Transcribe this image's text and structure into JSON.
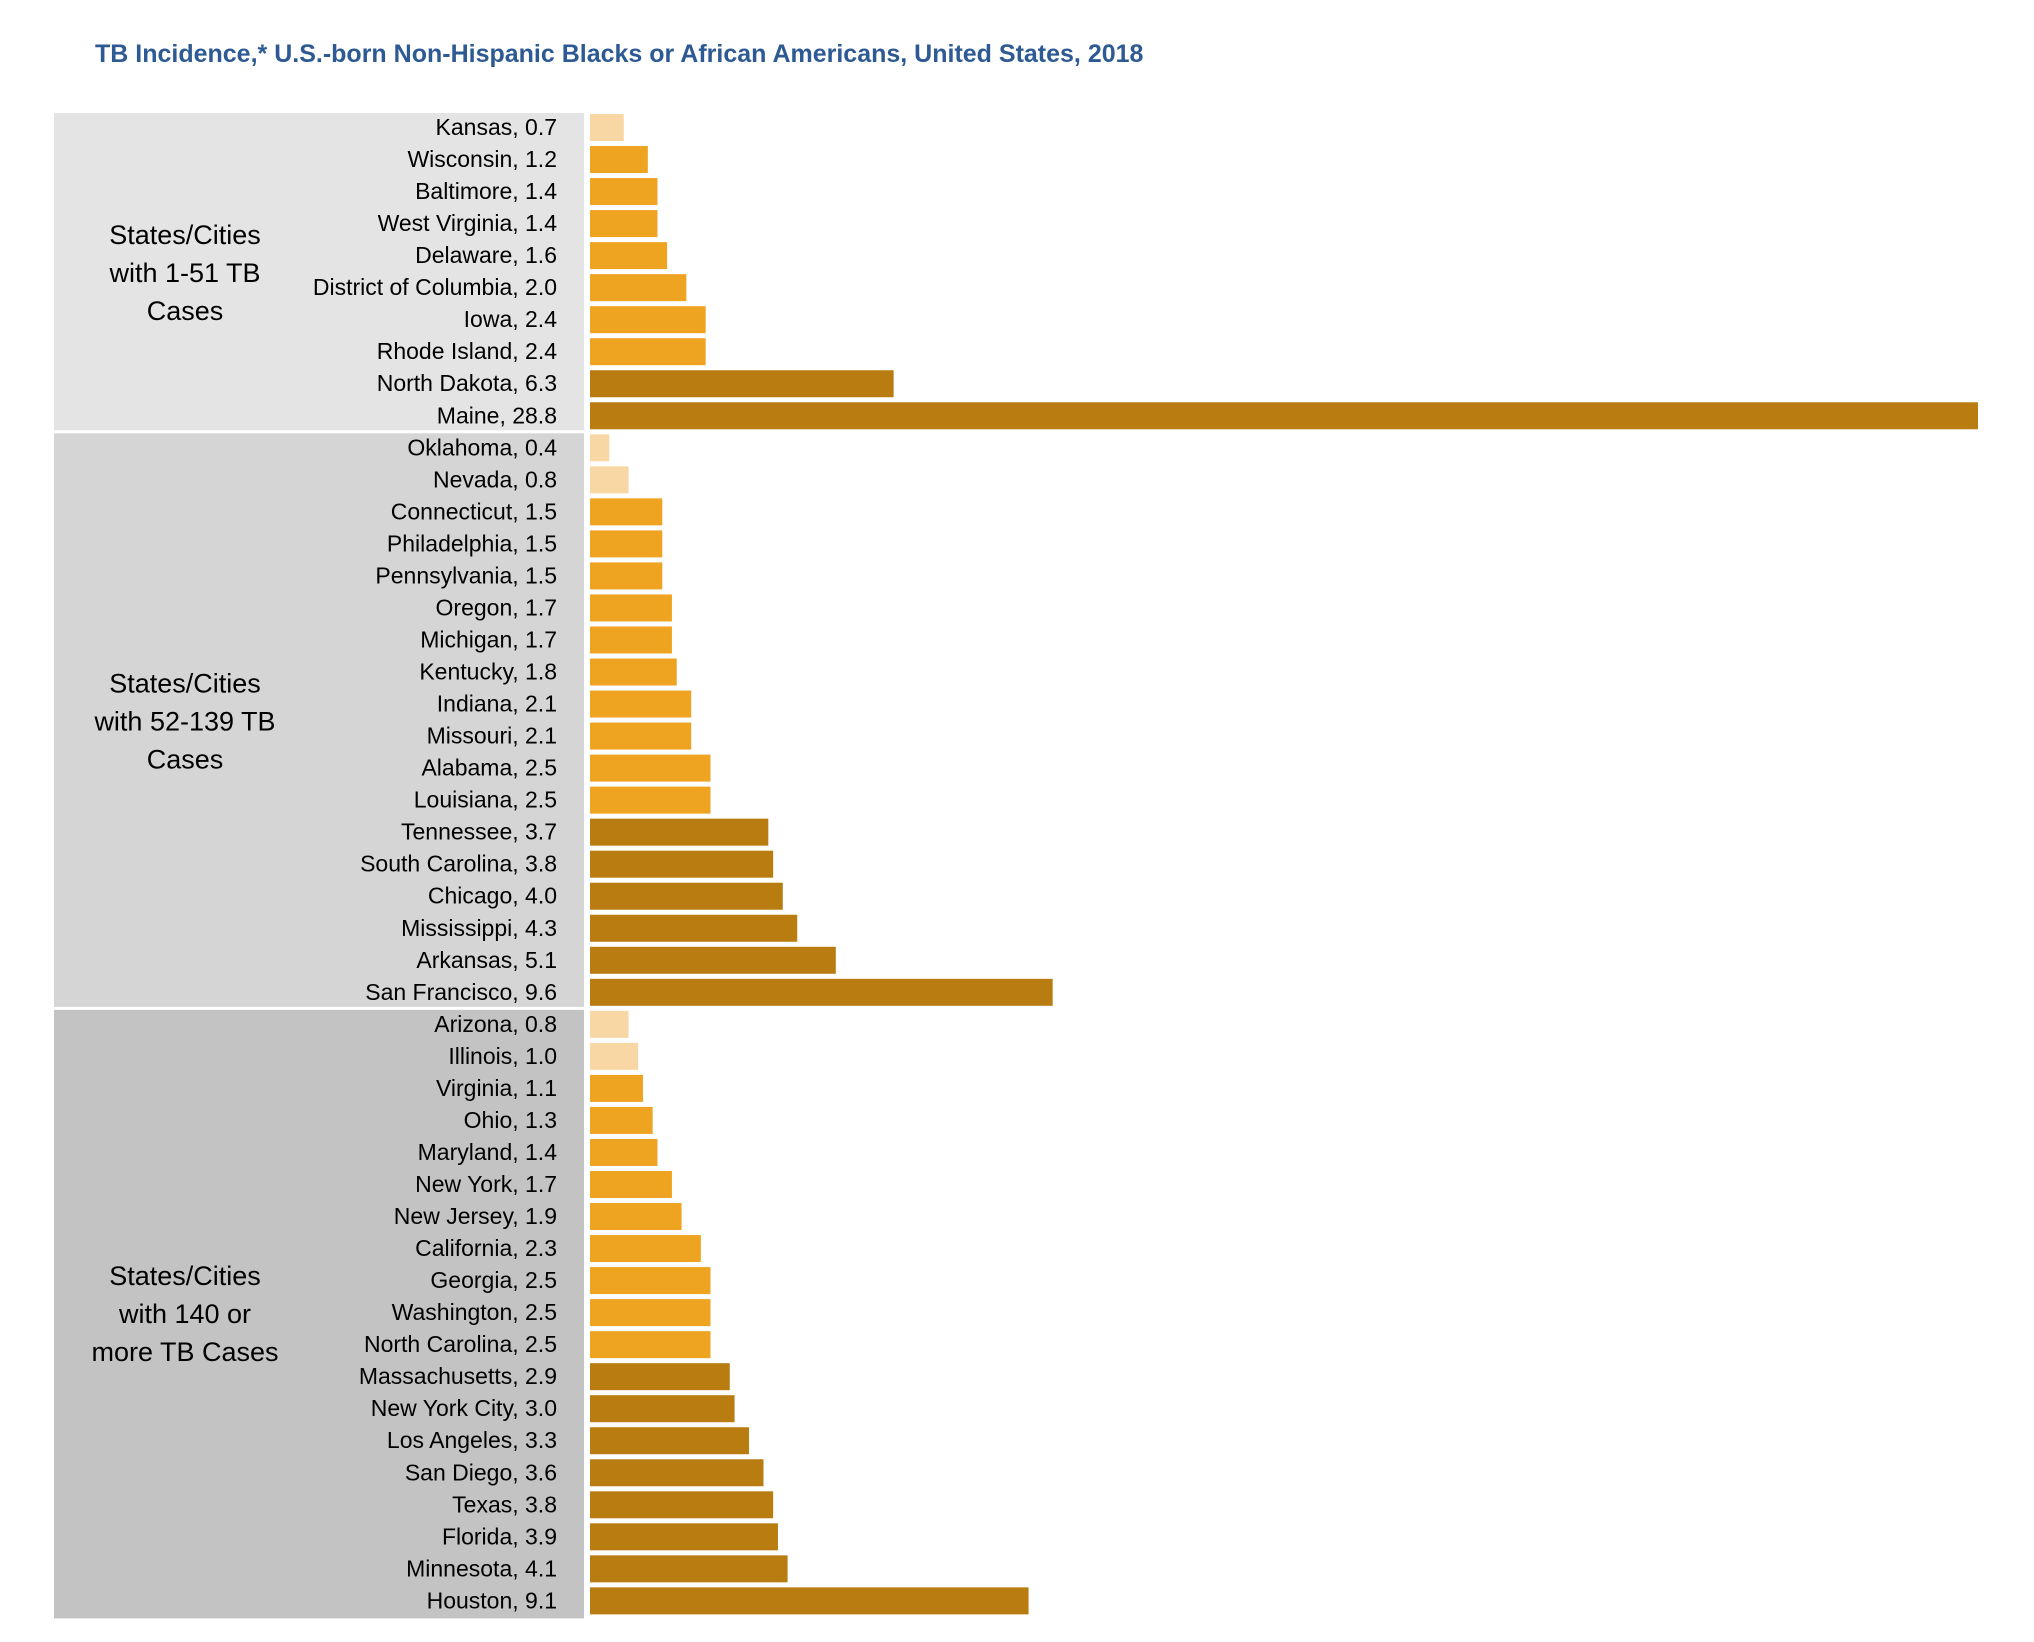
{
  "colors": {
    "band_1": "#e4e4e4",
    "band_2": "#d5d5d5",
    "band_3": "#c3c3c3",
    "bar_light": "#f8d7a4",
    "bar_mid": "#eea321",
    "bar_dark": "#b87c10"
  },
  "chart_data": {
    "type": "bar",
    "orientation": "horizontal",
    "title": "TB Incidence,* U.S.-born Non-Hispanic Blacks or African Americans, United States, 2018",
    "xlim": [
      0,
      28.8
    ],
    "grid": false,
    "legend": "none",
    "groups": [
      {
        "label_lines": [
          "States/Cities",
          "with 1-51 TB",
          "Cases"
        ],
        "rows": [
          {
            "label": "Kansas, 0.7",
            "value": 0.7,
            "shade": "light"
          },
          {
            "label": "Wisconsin, 1.2",
            "value": 1.2,
            "shade": "mid"
          },
          {
            "label": "Baltimore, 1.4",
            "value": 1.4,
            "shade": "mid"
          },
          {
            "label": "West Virginia, 1.4",
            "value": 1.4,
            "shade": "mid"
          },
          {
            "label": "Delaware, 1.6",
            "value": 1.6,
            "shade": "mid"
          },
          {
            "label": "District of Columbia, 2.0",
            "value": 2.0,
            "shade": "mid"
          },
          {
            "label": "Iowa, 2.4",
            "value": 2.4,
            "shade": "mid"
          },
          {
            "label": "Rhode Island, 2.4",
            "value": 2.4,
            "shade": "mid"
          },
          {
            "label": "North Dakota, 6.3",
            "value": 6.3,
            "shade": "dark"
          },
          {
            "label": "Maine, 28.8",
            "value": 28.8,
            "shade": "dark"
          }
        ]
      },
      {
        "label_lines": [
          "States/Cities",
          "with 52-139 TB",
          "Cases"
        ],
        "rows": [
          {
            "label": "Oklahoma, 0.4",
            "value": 0.4,
            "shade": "light"
          },
          {
            "label": "Nevada, 0.8",
            "value": 0.8,
            "shade": "light"
          },
          {
            "label": "Connecticut, 1.5",
            "value": 1.5,
            "shade": "mid"
          },
          {
            "label": "Philadelphia, 1.5",
            "value": 1.5,
            "shade": "mid"
          },
          {
            "label": "Pennsylvania, 1.5",
            "value": 1.5,
            "shade": "mid"
          },
          {
            "label": "Oregon, 1.7",
            "value": 1.7,
            "shade": "mid"
          },
          {
            "label": "Michigan, 1.7",
            "value": 1.7,
            "shade": "mid"
          },
          {
            "label": "Kentucky, 1.8",
            "value": 1.8,
            "shade": "mid"
          },
          {
            "label": "Indiana, 2.1",
            "value": 2.1,
            "shade": "mid"
          },
          {
            "label": "Missouri, 2.1",
            "value": 2.1,
            "shade": "mid"
          },
          {
            "label": "Alabama, 2.5",
            "value": 2.5,
            "shade": "mid"
          },
          {
            "label": "Louisiana, 2.5",
            "value": 2.5,
            "shade": "mid"
          },
          {
            "label": "Tennessee, 3.7",
            "value": 3.7,
            "shade": "dark"
          },
          {
            "label": "South Carolina, 3.8",
            "value": 3.8,
            "shade": "dark"
          },
          {
            "label": "Chicago, 4.0",
            "value": 4.0,
            "shade": "dark"
          },
          {
            "label": "Mississippi, 4.3",
            "value": 4.3,
            "shade": "dark"
          },
          {
            "label": "Arkansas, 5.1",
            "value": 5.1,
            "shade": "dark"
          },
          {
            "label": "San Francisco, 9.6",
            "value": 9.6,
            "shade": "dark"
          }
        ]
      },
      {
        "label_lines": [
          "States/Cities",
          "with 140 or",
          "more TB Cases"
        ],
        "rows": [
          {
            "label": "Arizona, 0.8",
            "value": 0.8,
            "shade": "light"
          },
          {
            "label": "Illinois, 1.0",
            "value": 1.0,
            "shade": "light"
          },
          {
            "label": "Virginia, 1.1",
            "value": 1.1,
            "shade": "mid"
          },
          {
            "label": "Ohio, 1.3",
            "value": 1.3,
            "shade": "mid"
          },
          {
            "label": "Maryland, 1.4",
            "value": 1.4,
            "shade": "mid"
          },
          {
            "label": "New York, 1.7",
            "value": 1.7,
            "shade": "mid"
          },
          {
            "label": "New Jersey, 1.9",
            "value": 1.9,
            "shade": "mid"
          },
          {
            "label": "California, 2.3",
            "value": 2.3,
            "shade": "mid"
          },
          {
            "label": "Georgia, 2.5",
            "value": 2.5,
            "shade": "mid"
          },
          {
            "label": "Washington, 2.5",
            "value": 2.5,
            "shade": "mid"
          },
          {
            "label": "North Carolina, 2.5",
            "value": 2.5,
            "shade": "mid"
          },
          {
            "label": "Massachusetts, 2.9",
            "value": 2.9,
            "shade": "dark"
          },
          {
            "label": "New York City, 3.0",
            "value": 3.0,
            "shade": "dark"
          },
          {
            "label": "Los Angeles, 3.3",
            "value": 3.3,
            "shade": "dark"
          },
          {
            "label": "San Diego, 3.6",
            "value": 3.6,
            "shade": "dark"
          },
          {
            "label": "Texas, 3.8",
            "value": 3.8,
            "shade": "dark"
          },
          {
            "label": "Florida, 3.9",
            "value": 3.9,
            "shade": "dark"
          },
          {
            "label": "Minnesota, 4.1",
            "value": 4.1,
            "shade": "dark"
          },
          {
            "label": "Houston, 9.1",
            "value": 9.1,
            "shade": "dark"
          }
        ]
      }
    ]
  }
}
